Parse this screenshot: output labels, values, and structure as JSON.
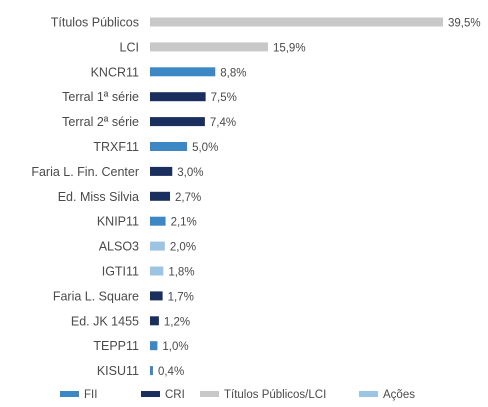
{
  "chart_data": {
    "type": "bar",
    "orientation": "horizontal",
    "title": "",
    "xlabel": "",
    "ylabel": "",
    "xlim": [
      0,
      39.5
    ],
    "grid": false,
    "legend_position": "bottom",
    "value_suffix": "%",
    "decimal_separator": ",",
    "groups": [
      {
        "name": "FII",
        "color": "#3b88c4"
      },
      {
        "name": "CRI",
        "color": "#1b2f5e"
      },
      {
        "name": "Títulos Públicos/LCI",
        "color": "#c8c8c8"
      },
      {
        "name": "Ações",
        "color": "#9cc5e3"
      }
    ],
    "categories": [
      "Títulos Públicos",
      "LCI",
      "KNCR11",
      "Terral 1ª série",
      "Terral 2ª série",
      "TRXF11",
      "Faria L. Fin. Center",
      "Ed. Miss Silvia",
      "KNIP11",
      "ALSO3",
      "IGTI11",
      "Faria L. Square",
      "Ed. JK 1455",
      "TEPP11",
      "KISU11"
    ],
    "values": [
      39.5,
      15.9,
      8.8,
      7.5,
      7.4,
      5.0,
      3.0,
      2.7,
      2.1,
      2.0,
      1.8,
      1.7,
      1.2,
      1.0,
      0.4
    ],
    "value_labels": [
      "39,5%",
      "15,9%",
      "8,8%",
      "7,5%",
      "7,4%",
      "5,0%",
      "3,0%",
      "2,7%",
      "2,1%",
      "2,0%",
      "1,8%",
      "1,7%",
      "1,2%",
      "1,0%",
      "0,4%"
    ],
    "category_group": [
      "Títulos Públicos/LCI",
      "Títulos Públicos/LCI",
      "FII",
      "CRI",
      "CRI",
      "FII",
      "CRI",
      "CRI",
      "FII",
      "Ações",
      "Ações",
      "CRI",
      "CRI",
      "FII",
      "FII"
    ]
  }
}
